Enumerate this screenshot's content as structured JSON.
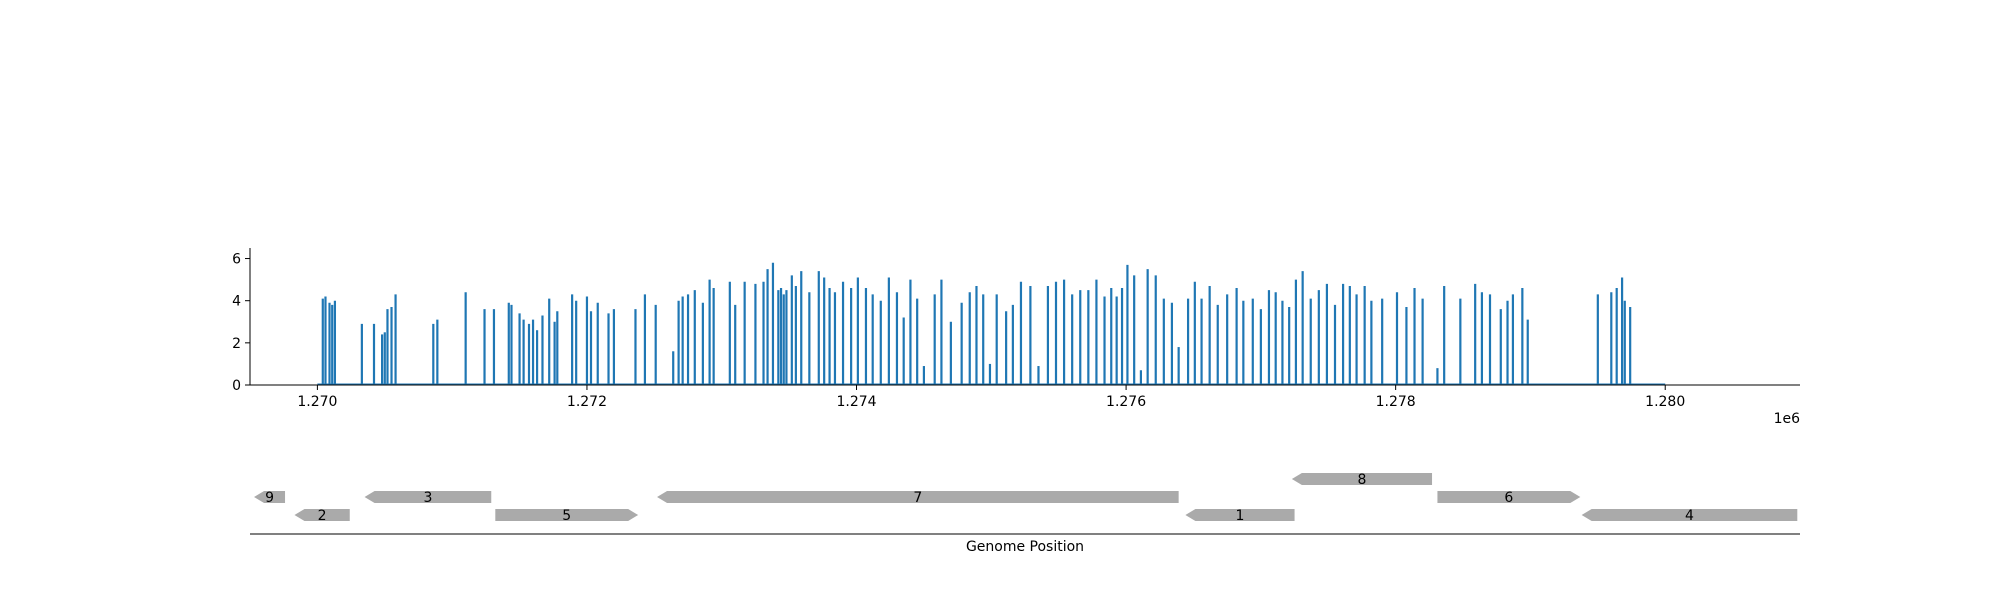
{
  "chart_data": [
    {
      "type": "bar",
      "xlabel": "",
      "ylabel": "",
      "x_offset_label": "1e6",
      "xlim": [
        1269500,
        1281000
      ],
      "ylim": [
        0,
        6.5
      ],
      "x_ticks": [
        1270000,
        1272000,
        1274000,
        1276000,
        1278000,
        1280000
      ],
      "x_tick_labels": [
        "1.270",
        "1.272",
        "1.274",
        "1.276",
        "1.278",
        "1.280"
      ],
      "y_ticks": [
        0,
        2,
        4,
        6
      ],
      "y_tick_labels": [
        "0",
        "2",
        "4",
        "6"
      ],
      "grid": false,
      "color": "#1f77b4",
      "baseline": [
        1270000,
        1280000
      ],
      "series": [
        {
          "x": [
            1270040,
            1270060,
            1270090,
            1270110,
            1270130,
            1270330,
            1270420,
            1270480,
            1270500,
            1270520,
            1270550,
            1270580,
            1270860,
            1270890,
            1271100,
            1271240,
            1271310,
            1271420,
            1271440,
            1271500,
            1271530,
            1271570,
            1271600,
            1271630,
            1271670,
            1271720,
            1271760,
            1271780,
            1271890,
            1271920,
            1272000,
            1272030,
            1272080,
            1272160,
            1272200,
            1272360,
            1272430,
            1272510,
            1272640,
            1272680,
            1272710,
            1272750,
            1272800,
            1272860,
            1272910,
            1272940,
            1273060,
            1273100,
            1273170,
            1273250,
            1273310,
            1273340,
            1273380,
            1273420,
            1273440,
            1273460,
            1273480,
            1273520,
            1273550,
            1273590,
            1273650,
            1273720,
            1273760,
            1273800,
            1273840,
            1273900,
            1273960,
            1274010,
            1274070,
            1274120,
            1274180,
            1274240,
            1274300,
            1274350,
            1274400,
            1274450,
            1274500,
            1274580,
            1274630,
            1274700,
            1274780,
            1274840,
            1274890,
            1274940,
            1274990,
            1275040,
            1275110,
            1275160,
            1275220,
            1275290,
            1275350,
            1275420,
            1275480,
            1275540,
            1275600,
            1275660,
            1275720,
            1275780,
            1275840,
            1275890,
            1275930,
            1275970,
            1276010,
            1276060,
            1276110,
            1276160,
            1276220,
            1276280,
            1276340,
            1276390,
            1276460,
            1276510,
            1276560,
            1276620,
            1276680,
            1276750,
            1276820,
            1276870,
            1276940,
            1277000,
            1277060,
            1277110,
            1277160,
            1277210,
            1277260,
            1277310,
            1277370,
            1277430,
            1277490,
            1277550,
            1277610,
            1277660,
            1277710,
            1277770,
            1277820,
            1277900,
            1278010,
            1278080,
            1278140,
            1278200,
            1278310,
            1278360,
            1278480,
            1278590,
            1278640,
            1278700,
            1278780,
            1278830,
            1278870,
            1278940,
            1278980,
            1279500,
            1279600,
            1279640,
            1279680,
            1279700,
            1279740
          ],
          "y": [
            4.1,
            4.2,
            3.9,
            3.8,
            4.0,
            2.9,
            2.9,
            2.4,
            2.5,
            3.6,
            3.7,
            4.3,
            2.9,
            3.1,
            4.4,
            3.6,
            3.6,
            3.9,
            3.8,
            3.4,
            3.1,
            2.9,
            3.1,
            2.6,
            3.3,
            4.1,
            3.0,
            3.5,
            4.3,
            4.0,
            4.2,
            3.5,
            3.9,
            3.4,
            3.6,
            3.6,
            4.3,
            3.8,
            1.6,
            4.0,
            4.2,
            4.3,
            4.5,
            3.9,
            5.0,
            4.6,
            4.9,
            3.8,
            4.9,
            4.8,
            4.9,
            5.5,
            5.8,
            4.5,
            4.6,
            4.3,
            4.5,
            5.2,
            4.7,
            5.4,
            4.4,
            5.4,
            5.1,
            4.6,
            4.4,
            4.9,
            4.6,
            5.1,
            4.6,
            4.3,
            4.0,
            5.1,
            4.4,
            3.2,
            5.0,
            4.1,
            0.9,
            4.3,
            5.0,
            3.0,
            3.9,
            4.4,
            4.7,
            4.3,
            1.0,
            4.3,
            3.5,
            3.8,
            4.9,
            4.7,
            0.9,
            4.7,
            4.9,
            5.0,
            4.3,
            4.5,
            4.5,
            5.0,
            4.2,
            4.6,
            4.2,
            4.6,
            5.7,
            5.2,
            0.7,
            5.5,
            5.2,
            4.1,
            3.9,
            1.8,
            4.1,
            4.9,
            4.1,
            4.7,
            3.8,
            4.3,
            4.6,
            4.0,
            4.1,
            3.6,
            4.5,
            4.4,
            4.0,
            3.7,
            5.0,
            5.4,
            4.1,
            4.5,
            4.8,
            3.8,
            4.8,
            4.7,
            4.3,
            4.7,
            4.0,
            4.1,
            4.4,
            3.7,
            4.6,
            4.1,
            0.8,
            4.7,
            4.1,
            4.8,
            4.4,
            4.3,
            3.6,
            4.0,
            4.3,
            4.6,
            3.1,
            4.3,
            4.4,
            4.6,
            5.1,
            4.0,
            3.7
          ]
        }
      ]
    },
    {
      "type": "gene-track",
      "xlabel": "Genome Position",
      "xlim": [
        1269500,
        1281000
      ],
      "color": "#aaaaaa",
      "genes": [
        {
          "label": "9",
          "start": 1269530,
          "end": 1269760,
          "strand": "-",
          "row": 1
        },
        {
          "label": "2",
          "start": 1269830,
          "end": 1270240,
          "strand": "-",
          "row": 0
        },
        {
          "label": "3",
          "start": 1270350,
          "end": 1271290,
          "strand": "-",
          "row": 1
        },
        {
          "label": "5",
          "start": 1271320,
          "end": 1272380,
          "strand": "+",
          "row": 0
        },
        {
          "label": "7",
          "start": 1272520,
          "end": 1276390,
          "strand": "-",
          "row": 1
        },
        {
          "label": "1",
          "start": 1276440,
          "end": 1277250,
          "strand": "-",
          "row": 0
        },
        {
          "label": "8",
          "start": 1277230,
          "end": 1278270,
          "strand": "-",
          "row": 2
        },
        {
          "label": "6",
          "start": 1278310,
          "end": 1279370,
          "strand": "+",
          "row": 1
        },
        {
          "label": "4",
          "start": 1279380,
          "end": 1280980,
          "strand": "-",
          "row": 0
        }
      ]
    }
  ]
}
